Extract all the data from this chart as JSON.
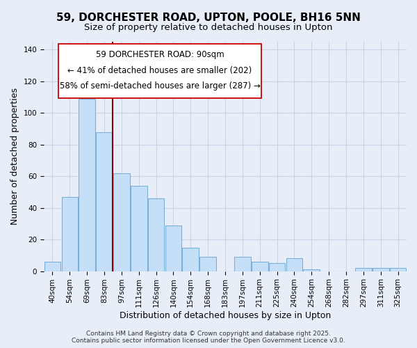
{
  "title1": "59, DORCHESTER ROAD, UPTON, POOLE, BH16 5NN",
  "title2": "Size of property relative to detached houses in Upton",
  "xlabel": "Distribution of detached houses by size in Upton",
  "ylabel": "Number of detached properties",
  "categories": [
    "40sqm",
    "54sqm",
    "69sqm",
    "83sqm",
    "97sqm",
    "111sqm",
    "126sqm",
    "140sqm",
    "154sqm",
    "168sqm",
    "183sqm",
    "197sqm",
    "211sqm",
    "225sqm",
    "240sqm",
    "254sqm",
    "268sqm",
    "282sqm",
    "297sqm",
    "311sqm",
    "325sqm"
  ],
  "values": [
    6,
    47,
    109,
    88,
    62,
    54,
    46,
    29,
    15,
    9,
    0,
    9,
    6,
    5,
    8,
    1,
    0,
    0,
    2,
    2,
    2
  ],
  "bar_color": "#c5dff8",
  "bar_edge_color": "#7ab0d8",
  "vline_color": "#8b0000",
  "annotation_title": "59 DORCHESTER ROAD: 90sqm",
  "annotation_line1": "← 41% of detached houses are smaller (202)",
  "annotation_line2": "58% of semi-detached houses are larger (287) →",
  "ylim": [
    0,
    145
  ],
  "yticks": [
    0,
    20,
    40,
    60,
    80,
    100,
    120,
    140
  ],
  "footer1": "Contains HM Land Registry data © Crown copyright and database right 2025.",
  "footer2": "Contains public sector information licensed under the Open Government Licence v3.0.",
  "bg_color": "#e8eef8",
  "grid_color": "#c8d4e8",
  "title_fontsize": 11,
  "subtitle_fontsize": 9.5,
  "axis_label_fontsize": 9,
  "tick_fontsize": 7.5,
  "annotation_fontsize": 8.5,
  "footer_fontsize": 6.5
}
